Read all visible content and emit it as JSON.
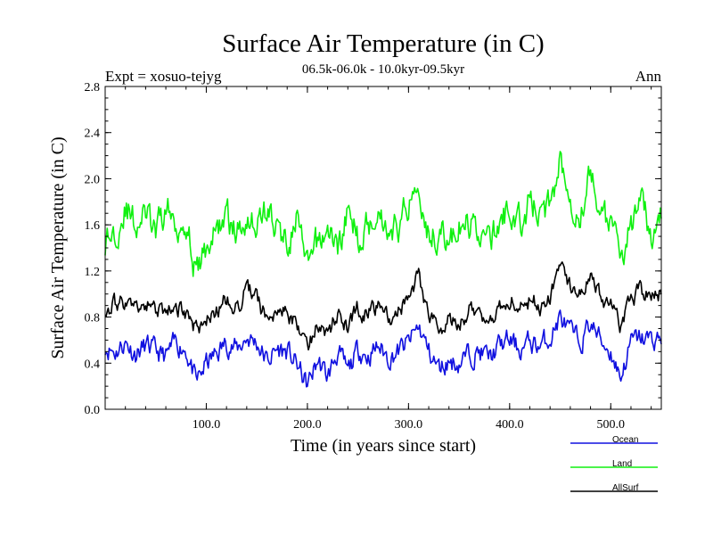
{
  "chart_data": {
    "type": "line",
    "title": "Surface Air Temperature (in C)",
    "subtitle": "06.5k-06.0k - 10.0kyr-09.5kyr",
    "expt_label": "Expt = xosuo-tejyg",
    "season_label": "Ann",
    "xlabel": "Time (in years since start)",
    "ylabel": "Surface Air Temperature (in C)",
    "xlim": [
      0,
      550
    ],
    "ylim": [
      0.0,
      2.8
    ],
    "xticks": [
      100,
      200,
      300,
      400,
      500
    ],
    "xtick_labels": [
      "100.0",
      "200.0",
      "300.0",
      "400.0",
      "500.0"
    ],
    "yticks": [
      0.0,
      0.4,
      0.8,
      1.2,
      1.6,
      2.0,
      2.4,
      2.8
    ],
    "ytick_labels": [
      "0.0",
      "0.4",
      "0.8",
      "1.2",
      "1.6",
      "2.0",
      "2.4",
      "2.8"
    ],
    "legend_position": "bottom-right, outside plot",
    "series": [
      {
        "name": "Ocean",
        "color": "#1010e0",
        "x": [
          0,
          10,
          20,
          30,
          40,
          50,
          60,
          70,
          80,
          90,
          100,
          110,
          120,
          130,
          140,
          150,
          160,
          170,
          180,
          190,
          200,
          210,
          220,
          230,
          240,
          250,
          260,
          270,
          280,
          290,
          300,
          310,
          320,
          330,
          340,
          350,
          360,
          370,
          380,
          390,
          400,
          410,
          420,
          430,
          440,
          450,
          460,
          470,
          480,
          490,
          500,
          510,
          520,
          530,
          540,
          550
        ],
        "values": [
          0.55,
          0.5,
          0.58,
          0.48,
          0.55,
          0.5,
          0.45,
          0.58,
          0.52,
          0.22,
          0.4,
          0.48,
          0.58,
          0.52,
          0.62,
          0.58,
          0.42,
          0.52,
          0.5,
          0.38,
          0.2,
          0.42,
          0.28,
          0.5,
          0.32,
          0.52,
          0.46,
          0.55,
          0.45,
          0.5,
          0.58,
          0.72,
          0.5,
          0.35,
          0.42,
          0.4,
          0.48,
          0.5,
          0.45,
          0.55,
          0.6,
          0.52,
          0.58,
          0.55,
          0.62,
          0.8,
          0.66,
          0.58,
          0.75,
          0.6,
          0.5,
          0.28,
          0.58,
          0.62,
          0.6,
          0.62
        ]
      },
      {
        "name": "Land",
        "color": "#10f010",
        "x": [
          0,
          10,
          20,
          30,
          40,
          50,
          60,
          70,
          80,
          90,
          100,
          110,
          120,
          130,
          140,
          150,
          160,
          170,
          180,
          190,
          200,
          210,
          220,
          230,
          240,
          250,
          260,
          270,
          280,
          290,
          300,
          310,
          320,
          330,
          340,
          350,
          360,
          370,
          380,
          390,
          400,
          410,
          420,
          430,
          440,
          450,
          460,
          470,
          480,
          490,
          500,
          510,
          520,
          530,
          540,
          550
        ],
        "values": [
          1.45,
          1.55,
          1.75,
          1.6,
          1.7,
          1.5,
          1.75,
          1.6,
          1.65,
          1.15,
          1.4,
          1.55,
          1.7,
          1.5,
          1.7,
          1.6,
          1.75,
          1.55,
          1.45,
          1.65,
          1.2,
          1.45,
          1.55,
          1.4,
          1.7,
          1.5,
          1.6,
          1.75,
          1.55,
          1.6,
          1.8,
          2.0,
          1.5,
          1.55,
          1.45,
          1.55,
          1.6,
          1.55,
          1.45,
          1.6,
          1.75,
          1.6,
          1.8,
          1.7,
          1.75,
          2.2,
          1.85,
          1.7,
          2.05,
          1.75,
          1.55,
          1.35,
          1.6,
          1.75,
          1.55,
          1.65
        ]
      },
      {
        "name": "AllSurf",
        "color": "#000000",
        "x": [
          0,
          10,
          20,
          30,
          40,
          50,
          60,
          70,
          80,
          90,
          100,
          110,
          120,
          130,
          140,
          150,
          160,
          170,
          180,
          190,
          200,
          210,
          220,
          230,
          240,
          250,
          260,
          270,
          280,
          290,
          300,
          310,
          320,
          330,
          340,
          350,
          360,
          370,
          380,
          390,
          400,
          410,
          420,
          430,
          440,
          450,
          460,
          470,
          480,
          490,
          500,
          510,
          520,
          530,
          540,
          550
        ],
        "values": [
          0.88,
          0.92,
          0.95,
          0.85,
          0.9,
          0.88,
          0.8,
          0.92,
          0.8,
          0.68,
          0.75,
          0.85,
          0.95,
          0.88,
          1.05,
          0.95,
          0.78,
          0.88,
          0.85,
          0.72,
          0.55,
          0.75,
          0.62,
          0.85,
          0.68,
          0.88,
          0.82,
          0.92,
          0.8,
          0.85,
          0.95,
          1.15,
          0.82,
          0.72,
          0.78,
          0.75,
          0.85,
          0.85,
          0.78,
          0.9,
          0.95,
          0.88,
          0.95,
          0.9,
          1.0,
          1.2,
          1.05,
          1.0,
          1.15,
          0.98,
          0.88,
          0.7,
          0.95,
          1.02,
          0.95,
          1.0
        ]
      }
    ]
  }
}
